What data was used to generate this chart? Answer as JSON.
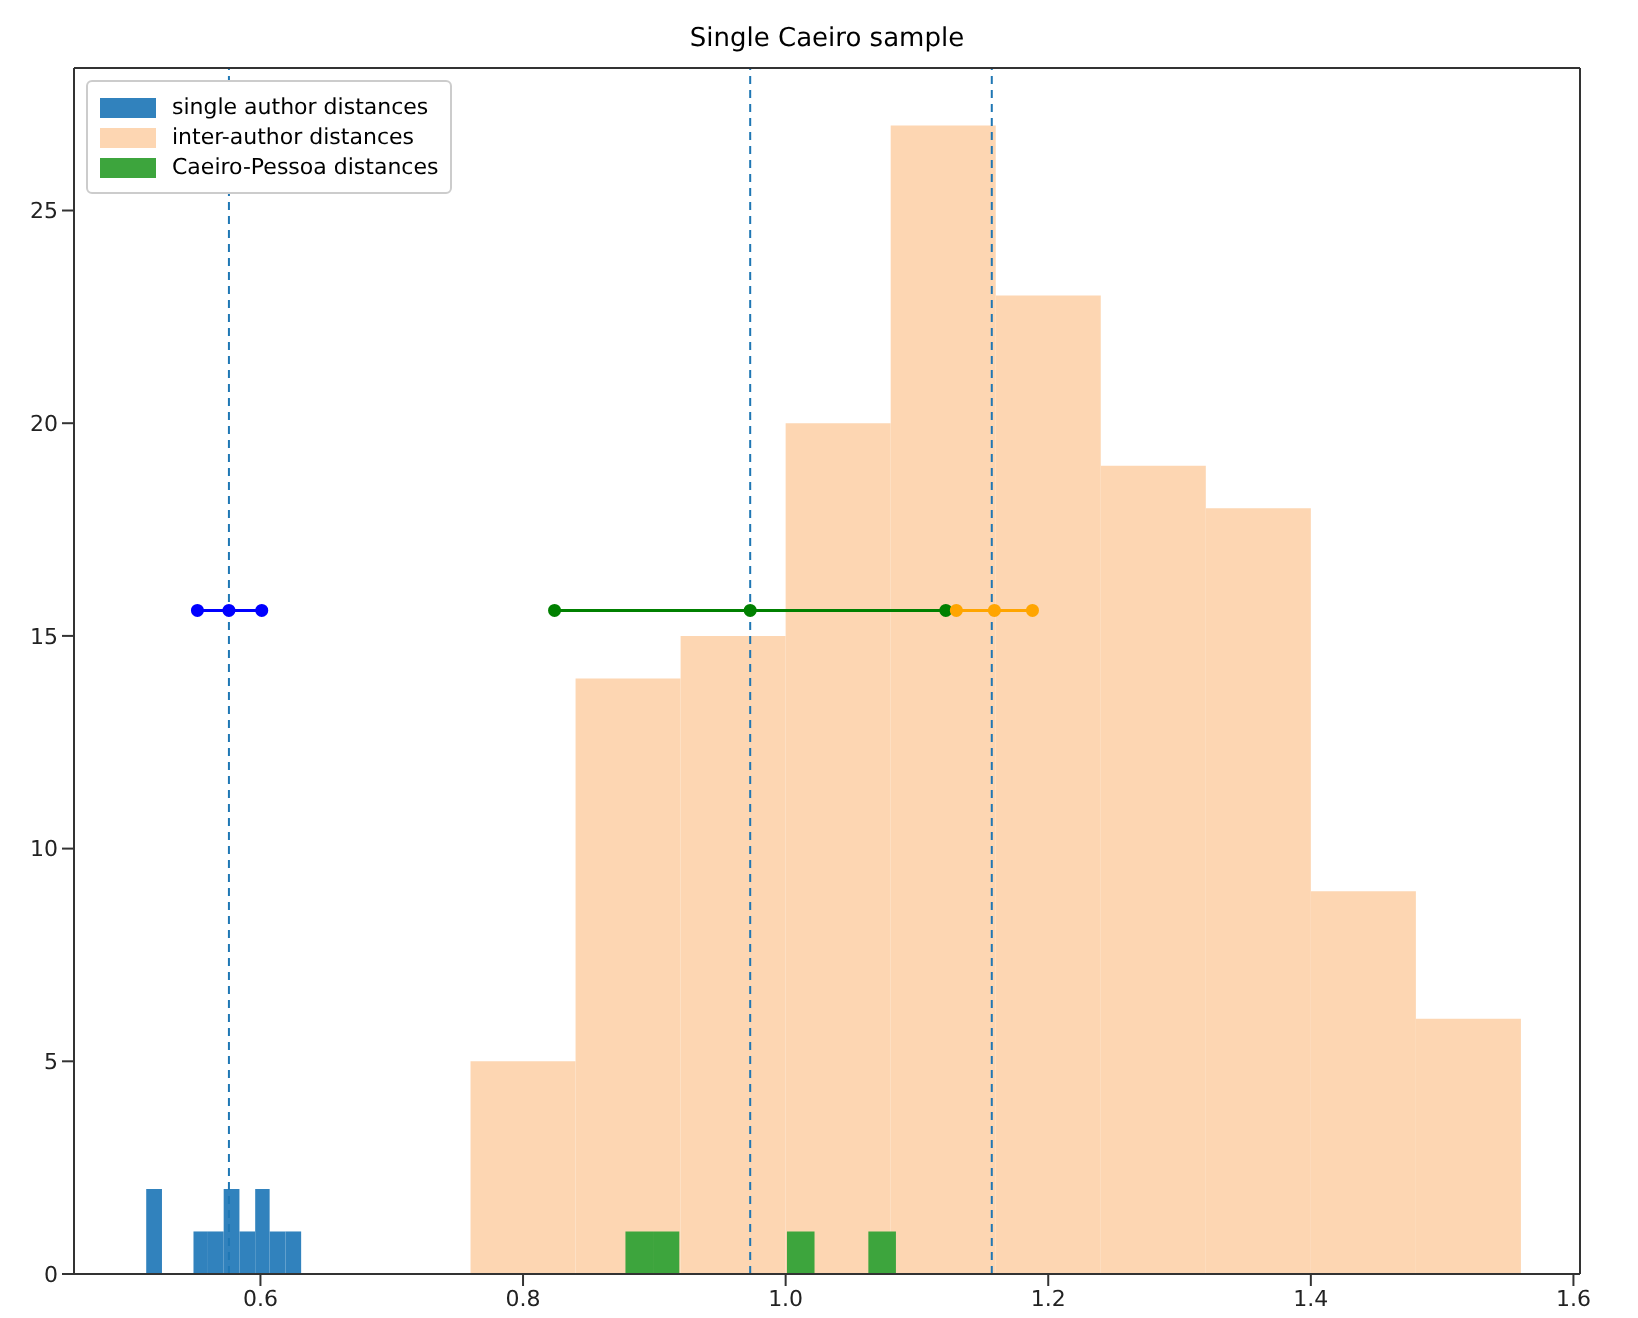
{
  "chart_data": {
    "type": "histogram",
    "title": "Single Caeiro sample",
    "xlim": [
      0.458,
      1.605
    ],
    "xticks": [
      0.6,
      0.8,
      {
        "value": 1,
        "label": "1.0"
      },
      1.2,
      1.4,
      1.6
    ],
    "ylim": [
      0,
      28.35
    ],
    "yticks": [
      0,
      5,
      10,
      15,
      20,
      25
    ],
    "legend": "top left",
    "series": [
      {
        "name": "single author distances",
        "color": "#3182bd",
        "bins": [
          0.513,
          0.525,
          0.549,
          0.56,
          0.572,
          0.584,
          0.596,
          0.607,
          0.619,
          0.631
        ],
        "values": [
          2,
          0,
          1,
          1,
          2,
          1,
          2,
          1,
          1
        ]
      },
      {
        "name": "inter-author distances",
        "color": "#fdd6b2",
        "bins": [
          0.76,
          0.84,
          0.92,
          1.0,
          1.08,
          1.16,
          1.24,
          1.32,
          1.4,
          1.48,
          1.56
        ],
        "values": [
          5,
          14,
          15,
          20,
          27,
          23,
          19,
          18,
          9,
          6
        ]
      },
      {
        "name": "Caeiro-Pessoa distances",
        "color": "#3da53d",
        "bins": [
          0.878,
          0.899,
          0.919,
          1.001,
          1.022,
          1.063,
          1.084
        ],
        "values": [
          1,
          1,
          0,
          1,
          0,
          1
        ]
      },
      {
        "type": "line",
        "color": "#0000ff",
        "marker": "circle",
        "x": [
          0.552,
          0.576,
          0.601
        ],
        "values": [
          15.6,
          15.6,
          15.6
        ]
      },
      {
        "type": "line",
        "color": "#008000",
        "marker": "circle",
        "x": [
          0.824,
          0.973,
          1.122
        ],
        "values": [
          15.6,
          15.6,
          15.6
        ]
      },
      {
        "type": "line",
        "color": "#ffa500",
        "marker": "circle",
        "x": [
          1.13,
          1.159,
          1.188
        ],
        "values": [
          15.6,
          15.6,
          15.6
        ]
      }
    ],
    "ref_lines": [
      {
        "axis": "x",
        "value": 0.576,
        "color": "#1f77b4",
        "line_style": "dashed"
      },
      {
        "axis": "x",
        "value": 0.973,
        "color": "#1f77b4",
        "line_style": "dashed"
      },
      {
        "axis": "x",
        "value": 1.157,
        "color": "#1f77b4",
        "line_style": "dashed"
      }
    ]
  }
}
